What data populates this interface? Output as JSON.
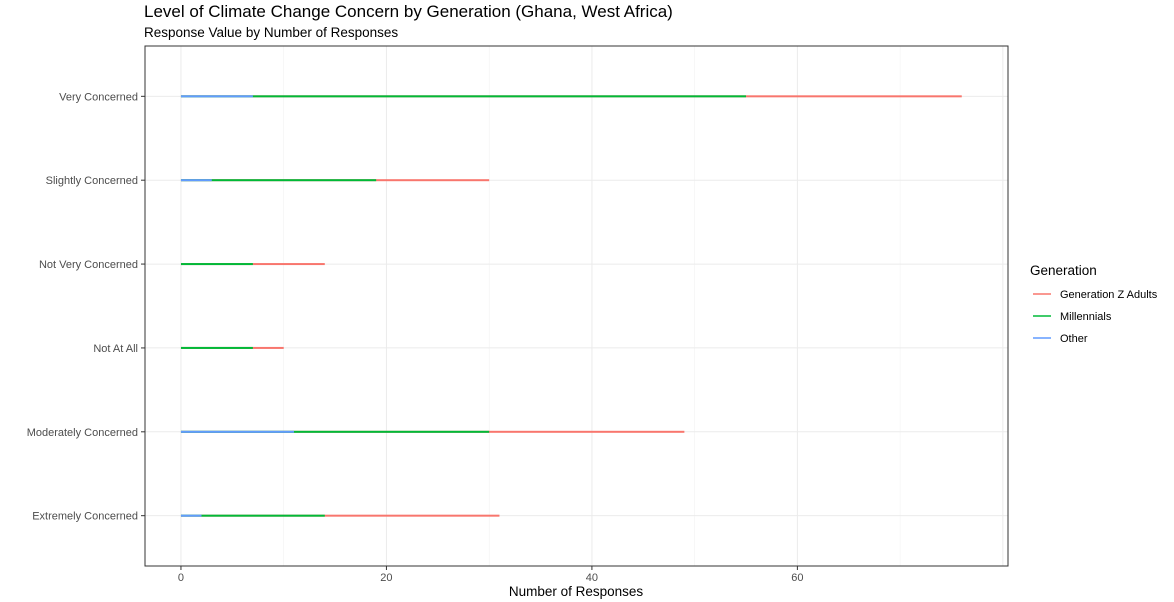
{
  "chart_data": {
    "type": "bar",
    "orientation": "horizontal",
    "stacked": true,
    "title": "Level of Climate Change Concern by Generation (Ghana, West Africa)",
    "subtitle": "Response Value by Number of Responses",
    "xlabel": "Number of Responses",
    "ylabel": "",
    "xlim": [
      -3.5,
      80.5
    ],
    "x_ticks": [
      "0",
      "20",
      "40",
      "60"
    ],
    "grid": true,
    "legend_position": "right",
    "legend_title": "Generation",
    "categories": [
      "Extremely Concerned",
      "Moderately Concerned",
      "Not At All",
      "Not Very Concerned",
      "Slightly Concerned",
      "Very Concerned"
    ],
    "series": [
      {
        "name": "Generation Z Adults",
        "color": "#F8766D",
        "values": [
          17,
          19,
          3,
          7,
          11,
          21
        ]
      },
      {
        "name": "Millennials",
        "color": "#00BA38",
        "values": [
          12,
          19,
          7,
          7,
          16,
          48
        ]
      },
      {
        "name": "Other",
        "color": "#619CFF",
        "values": [
          2,
          11,
          0,
          0,
          3,
          7
        ]
      }
    ]
  }
}
